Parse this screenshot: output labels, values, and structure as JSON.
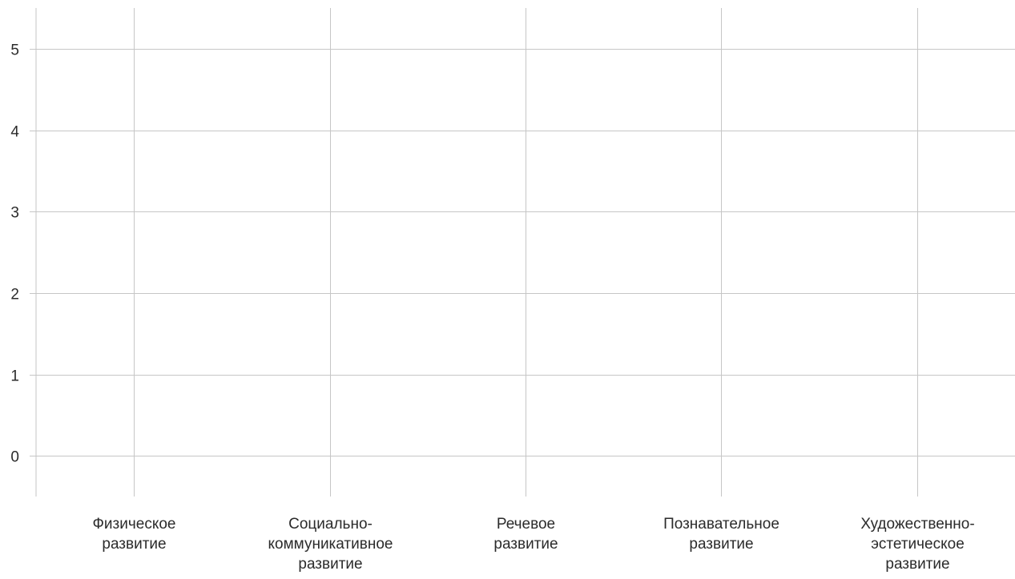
{
  "chart_data": {
    "type": "line",
    "title": "",
    "xlabel": "",
    "ylabel": "",
    "categories": [
      "Физическое развитие",
      "Социально-коммуникативное развитие",
      "Речевое развитие",
      "Познавательное развитие",
      "Художественно-эстетическое развитие"
    ],
    "category_label_lines": [
      [
        "Физическое",
        "развитие"
      ],
      [
        "Социально-",
        "коммуникативное",
        "развитие"
      ],
      [
        "Речевое",
        "развитие"
      ],
      [
        "Познавательное",
        "развитие"
      ],
      [
        "Художественно-",
        "эстетическое",
        "развитие"
      ]
    ],
    "y_ticks": [
      "0",
      "1",
      "2",
      "3",
      "4",
      "5"
    ],
    "ylim": [
      -0.5,
      5.5
    ],
    "series": [],
    "grid": true,
    "legend": "none",
    "colors": {
      "grid": "#c6c6c6",
      "text": "#2b2b2b"
    }
  }
}
